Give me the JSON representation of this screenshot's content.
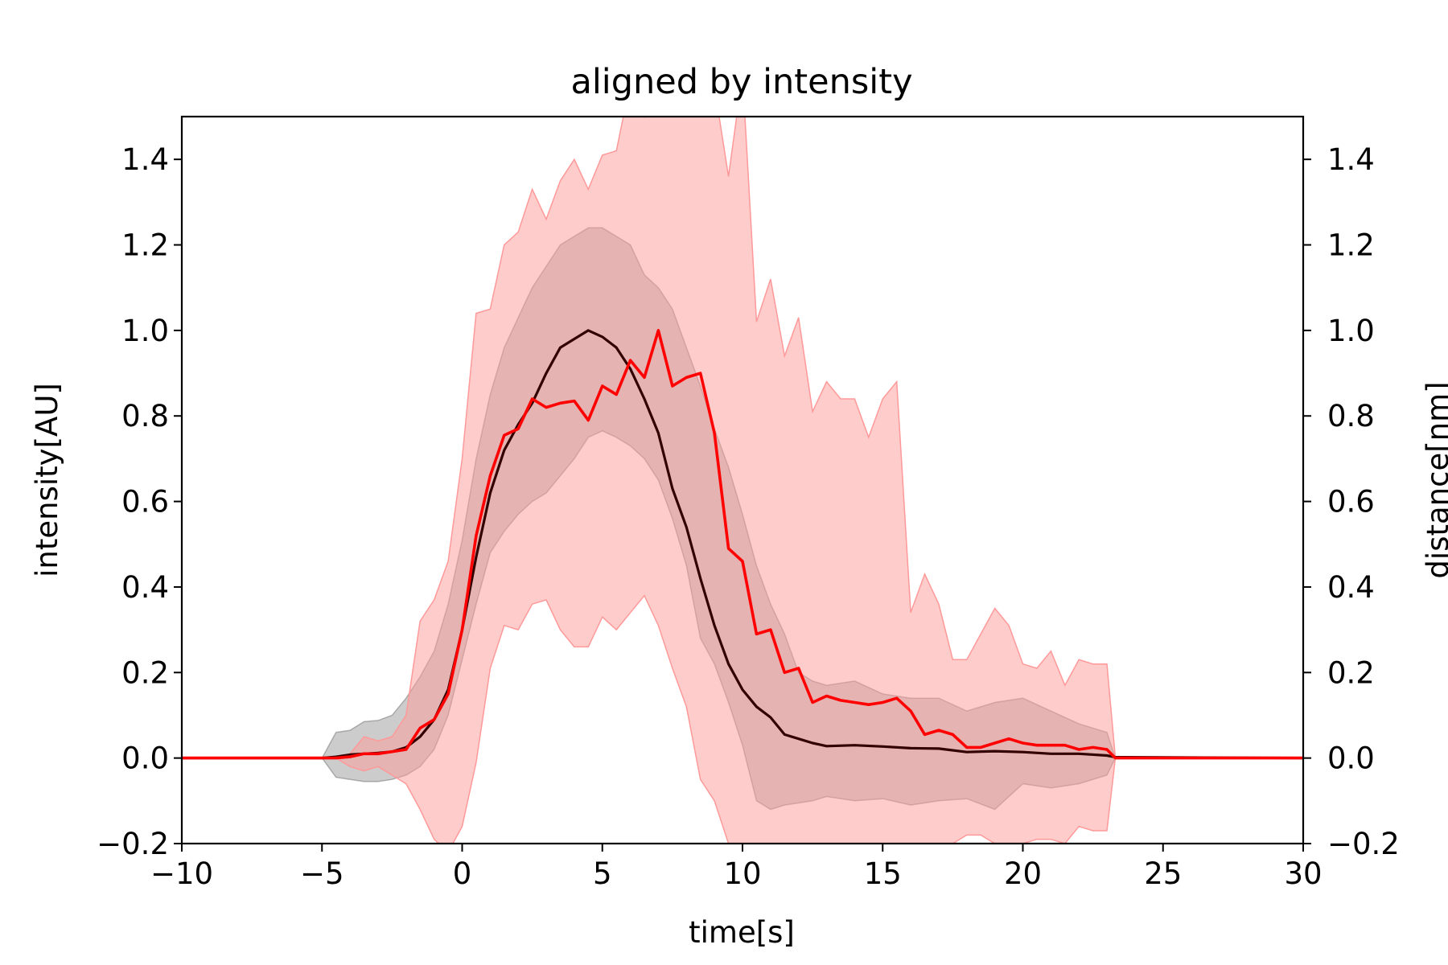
{
  "chart_data": {
    "type": "line",
    "title": "aligned by intensity",
    "xlabel": "time[s]",
    "ylabel": "intensity[AU]",
    "ylabel_right": "distance[nm]",
    "xlim": [
      -10,
      30
    ],
    "ylim": [
      -0.2,
      1.5
    ],
    "ylim_right": [
      -0.2,
      1.5
    ],
    "xticks": [
      -10,
      -5,
      0,
      5,
      10,
      15,
      20,
      25,
      30
    ],
    "xtick_labels": [
      "−10",
      "−5",
      "0",
      "5",
      "10",
      "15",
      "20",
      "25",
      "30"
    ],
    "yticks": [
      -0.2,
      0.0,
      0.2,
      0.4,
      0.6,
      0.8,
      1.0,
      1.2,
      1.4
    ],
    "ytick_labels": [
      "−0.2",
      "0.0",
      "0.2",
      "0.4",
      "0.6",
      "0.8",
      "1.0",
      "1.2",
      "1.4"
    ],
    "grid": false,
    "legend": "none",
    "colors": {
      "intensity_line": "#330000",
      "intensity_band": "#808080",
      "distance_line": "#ff0000",
      "distance_band": "#ff9999"
    },
    "series": [
      {
        "axis": "left",
        "x": [
          -10,
          -5,
          -4.5,
          -4,
          -3.5,
          -3,
          -2.5,
          -2,
          -1.5,
          -1,
          -0.5,
          0,
          0.5,
          1,
          1.5,
          2,
          2.5,
          3,
          3.5,
          4,
          4.5,
          5,
          5.5,
          6,
          6.5,
          7,
          7.5,
          8,
          8.5,
          9,
          9.5,
          10,
          10.5,
          11,
          11.5,
          12,
          12.5,
          13,
          14,
          15,
          16,
          17,
          18,
          19,
          20,
          21,
          22,
          23,
          23.3,
          30
        ],
        "y": [
          0,
          0,
          0.003,
          0.008,
          0.01,
          0.012,
          0.015,
          0.025,
          0.05,
          0.09,
          0.16,
          0.3,
          0.47,
          0.62,
          0.72,
          0.78,
          0.83,
          0.9,
          0.96,
          0.98,
          1.0,
          0.985,
          0.96,
          0.91,
          0.84,
          0.76,
          0.63,
          0.54,
          0.42,
          0.31,
          0.22,
          0.16,
          0.12,
          0.095,
          0.055,
          0.045,
          0.035,
          0.028,
          0.03,
          0.027,
          0.023,
          0.022,
          0.014,
          0.016,
          0.014,
          0.01,
          0.01,
          0.006,
          0.002,
          0
        ],
        "lower": [
          0,
          0,
          -0.045,
          -0.05,
          -0.055,
          -0.055,
          -0.05,
          -0.04,
          -0.02,
          0.02,
          0.1,
          0.23,
          0.36,
          0.48,
          0.53,
          0.57,
          0.6,
          0.62,
          0.66,
          0.7,
          0.75,
          0.765,
          0.75,
          0.73,
          0.7,
          0.65,
          0.56,
          0.45,
          0.28,
          0.22,
          0.13,
          0.03,
          -0.1,
          -0.12,
          -0.11,
          -0.105,
          -0.1,
          -0.09,
          -0.1,
          -0.095,
          -0.11,
          -0.1,
          -0.095,
          -0.12,
          -0.06,
          -0.07,
          -0.06,
          -0.04,
          0,
          0
        ],
        "upper": [
          0,
          0,
          0.06,
          0.065,
          0.085,
          0.088,
          0.1,
          0.14,
          0.19,
          0.25,
          0.36,
          0.51,
          0.7,
          0.85,
          0.96,
          1.03,
          1.1,
          1.15,
          1.2,
          1.22,
          1.24,
          1.24,
          1.22,
          1.2,
          1.13,
          1.1,
          1.05,
          0.96,
          0.87,
          0.77,
          0.68,
          0.57,
          0.45,
          0.36,
          0.29,
          0.2,
          0.18,
          0.17,
          0.18,
          0.15,
          0.14,
          0.14,
          0.11,
          0.13,
          0.14,
          0.11,
          0.08,
          0.06,
          0,
          0
        ]
      },
      {
        "axis": "right",
        "x": [
          -10,
          -4.5,
          -4,
          -3.5,
          -3,
          -2.5,
          -2,
          -1.5,
          -1,
          -0.5,
          0,
          0.5,
          1,
          1.5,
          2,
          2.5,
          3,
          3.5,
          4,
          4.5,
          5,
          5.5,
          6,
          6.5,
          7,
          7.5,
          8,
          8.5,
          9,
          9.5,
          10,
          10.5,
          11,
          11.5,
          12,
          12.5,
          13,
          13.5,
          14,
          14.5,
          15,
          15.5,
          16,
          16.5,
          17,
          17.5,
          18,
          18.5,
          19,
          19.5,
          20,
          20.5,
          21,
          21.5,
          22,
          22.5,
          23,
          23.3,
          30
        ],
        "y": [
          0,
          0,
          0.003,
          0.01,
          0.01,
          0.015,
          0.02,
          0.07,
          0.09,
          0.15,
          0.3,
          0.52,
          0.66,
          0.755,
          0.77,
          0.84,
          0.82,
          0.83,
          0.835,
          0.79,
          0.87,
          0.85,
          0.93,
          0.89,
          1.0,
          0.87,
          0.89,
          0.9,
          0.76,
          0.49,
          0.46,
          0.29,
          0.3,
          0.2,
          0.21,
          0.13,
          0.145,
          0.135,
          0.13,
          0.125,
          0.13,
          0.14,
          0.11,
          0.055,
          0.065,
          0.055,
          0.025,
          0.025,
          0.035,
          0.045,
          0.035,
          0.03,
          0.03,
          0.03,
          0.02,
          0.025,
          0.02,
          0,
          0
        ],
        "lower": [
          0,
          0,
          -0.02,
          -0.03,
          -0.02,
          -0.04,
          -0.06,
          -0.12,
          -0.19,
          -0.22,
          -0.16,
          -0.01,
          0.21,
          0.31,
          0.3,
          0.36,
          0.37,
          0.3,
          0.26,
          0.26,
          0.33,
          0.3,
          0.34,
          0.38,
          0.31,
          0.21,
          0.12,
          -0.05,
          -0.1,
          -0.2,
          -0.2,
          -0.2,
          -0.2,
          -0.2,
          -0.2,
          -0.2,
          -0.2,
          -0.2,
          -0.2,
          -0.2,
          -0.2,
          -0.2,
          -0.2,
          -0.2,
          -0.2,
          -0.2,
          -0.18,
          -0.18,
          -0.2,
          -0.2,
          -0.2,
          -0.19,
          -0.19,
          -0.2,
          -0.16,
          -0.17,
          -0.17,
          0,
          0
        ],
        "upper": [
          0,
          0,
          0.01,
          0.05,
          0.04,
          0.05,
          0.1,
          0.32,
          0.37,
          0.46,
          0.7,
          1.04,
          1.05,
          1.2,
          1.23,
          1.33,
          1.26,
          1.35,
          1.4,
          1.33,
          1.41,
          1.42,
          1.58,
          1.5,
          1.65,
          1.76,
          1.59,
          1.55,
          1.57,
          1.36,
          1.6,
          1.02,
          1.12,
          0.94,
          1.03,
          0.81,
          0.88,
          0.84,
          0.84,
          0.75,
          0.84,
          0.88,
          0.34,
          0.43,
          0.36,
          0.23,
          0.23,
          0.29,
          0.35,
          0.31,
          0.22,
          0.21,
          0.25,
          0.17,
          0.23,
          0.22,
          0.22,
          0,
          0
        ]
      }
    ]
  }
}
